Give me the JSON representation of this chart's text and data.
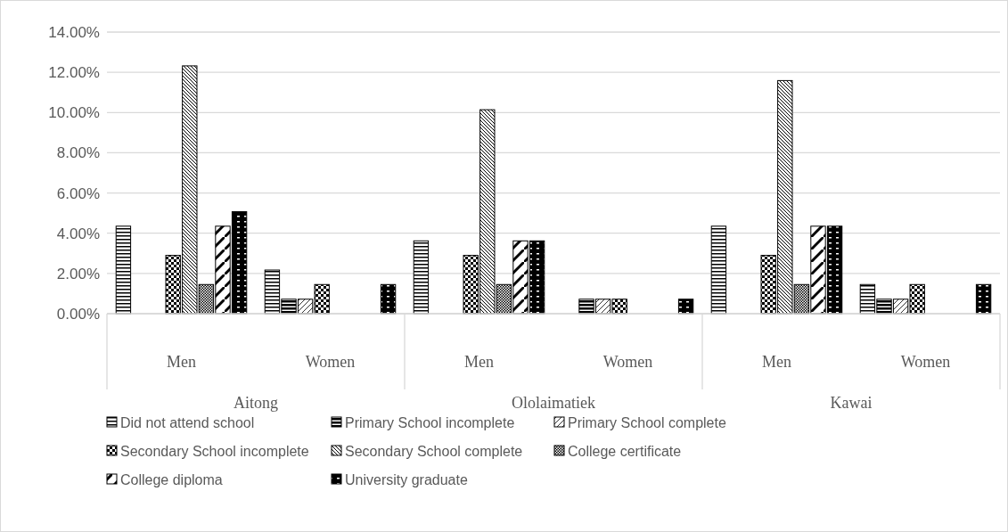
{
  "chart_data": {
    "type": "bar",
    "categories": [
      "Men",
      "Women",
      "Men",
      "Women",
      "Men",
      "Women"
    ],
    "annotations": [
      "Aitong",
      "Ololaimatiek",
      "Kawai"
    ],
    "series": [
      {
        "name": "Did not attend school",
        "color": "#000000",
        "values": [
          4.35,
          2.17,
          3.62,
          null,
          4.35,
          1.45
        ]
      },
      {
        "name": "Primary School incomplete",
        "color": "#000000",
        "values": [
          null,
          0.72,
          null,
          0.72,
          null,
          0.72
        ]
      },
      {
        "name": "Primary School complete",
        "color": "#000000",
        "values": [
          null,
          0.72,
          null,
          0.72,
          null,
          0.72
        ]
      },
      {
        "name": "Secondary School incomplete",
        "color": "#000000",
        "values": [
          2.9,
          1.45,
          2.9,
          0.72,
          2.9,
          1.45
        ]
      },
      {
        "name": "Secondary School complete",
        "color": "#000000",
        "values": [
          12.32,
          null,
          10.14,
          null,
          11.59,
          null
        ]
      },
      {
        "name": "College certificate",
        "color": "#000000",
        "values": [
          1.45,
          null,
          1.45,
          null,
          1.45,
          null
        ]
      },
      {
        "name": "College diploma",
        "color": "#000000",
        "values": [
          4.35,
          null,
          3.62,
          null,
          4.35,
          null
        ]
      },
      {
        "name": "University graduate",
        "color": "#000000",
        "values": [
          5.07,
          1.45,
          3.62,
          0.72,
          4.35,
          1.45
        ]
      }
    ],
    "ylim": [
      0,
      14
    ],
    "yticks": [
      {
        "value": 0,
        "label": "0.00%"
      },
      {
        "value": 2,
        "label": "2.00%"
      },
      {
        "value": 4,
        "label": "4.00%"
      },
      {
        "value": 6,
        "label": "6.00%"
      },
      {
        "value": 8,
        "label": "8.00%"
      },
      {
        "value": 10,
        "label": "10.00%"
      },
      {
        "value": 12,
        "label": "12.00%"
      },
      {
        "value": 14,
        "label": "14.00%"
      }
    ],
    "grid": "y",
    "legend": "bottom"
  }
}
